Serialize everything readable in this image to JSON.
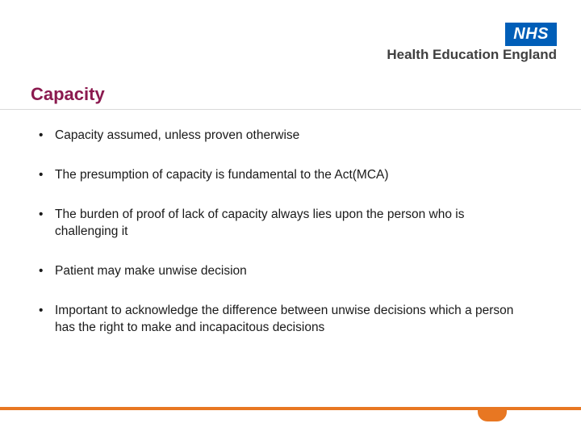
{
  "brand": {
    "nhs_logo_text": "NHS",
    "hee_text": "Health Education England",
    "brand_color": "#005eb8",
    "accent_color": "#e87722",
    "title_color": "#8b1a4f"
  },
  "slide": {
    "title": "Capacity",
    "bullets": [
      "Capacity assumed, unless proven otherwise",
      "The presumption of capacity is fundamental to the Act(MCA)",
      "The burden of proof of lack of capacity always lies upon the person who is challenging it",
      "Patient may make unwise decision",
      "Important to acknowledge the difference between unwise decisions  which a person has the right to make and incapacitous decisions"
    ]
  },
  "styling": {
    "title_fontsize": 22,
    "body_fontsize": 15.5,
    "bullet_spacing": 28,
    "background_color": "#ffffff",
    "underline_color": "#d9d9d9"
  }
}
